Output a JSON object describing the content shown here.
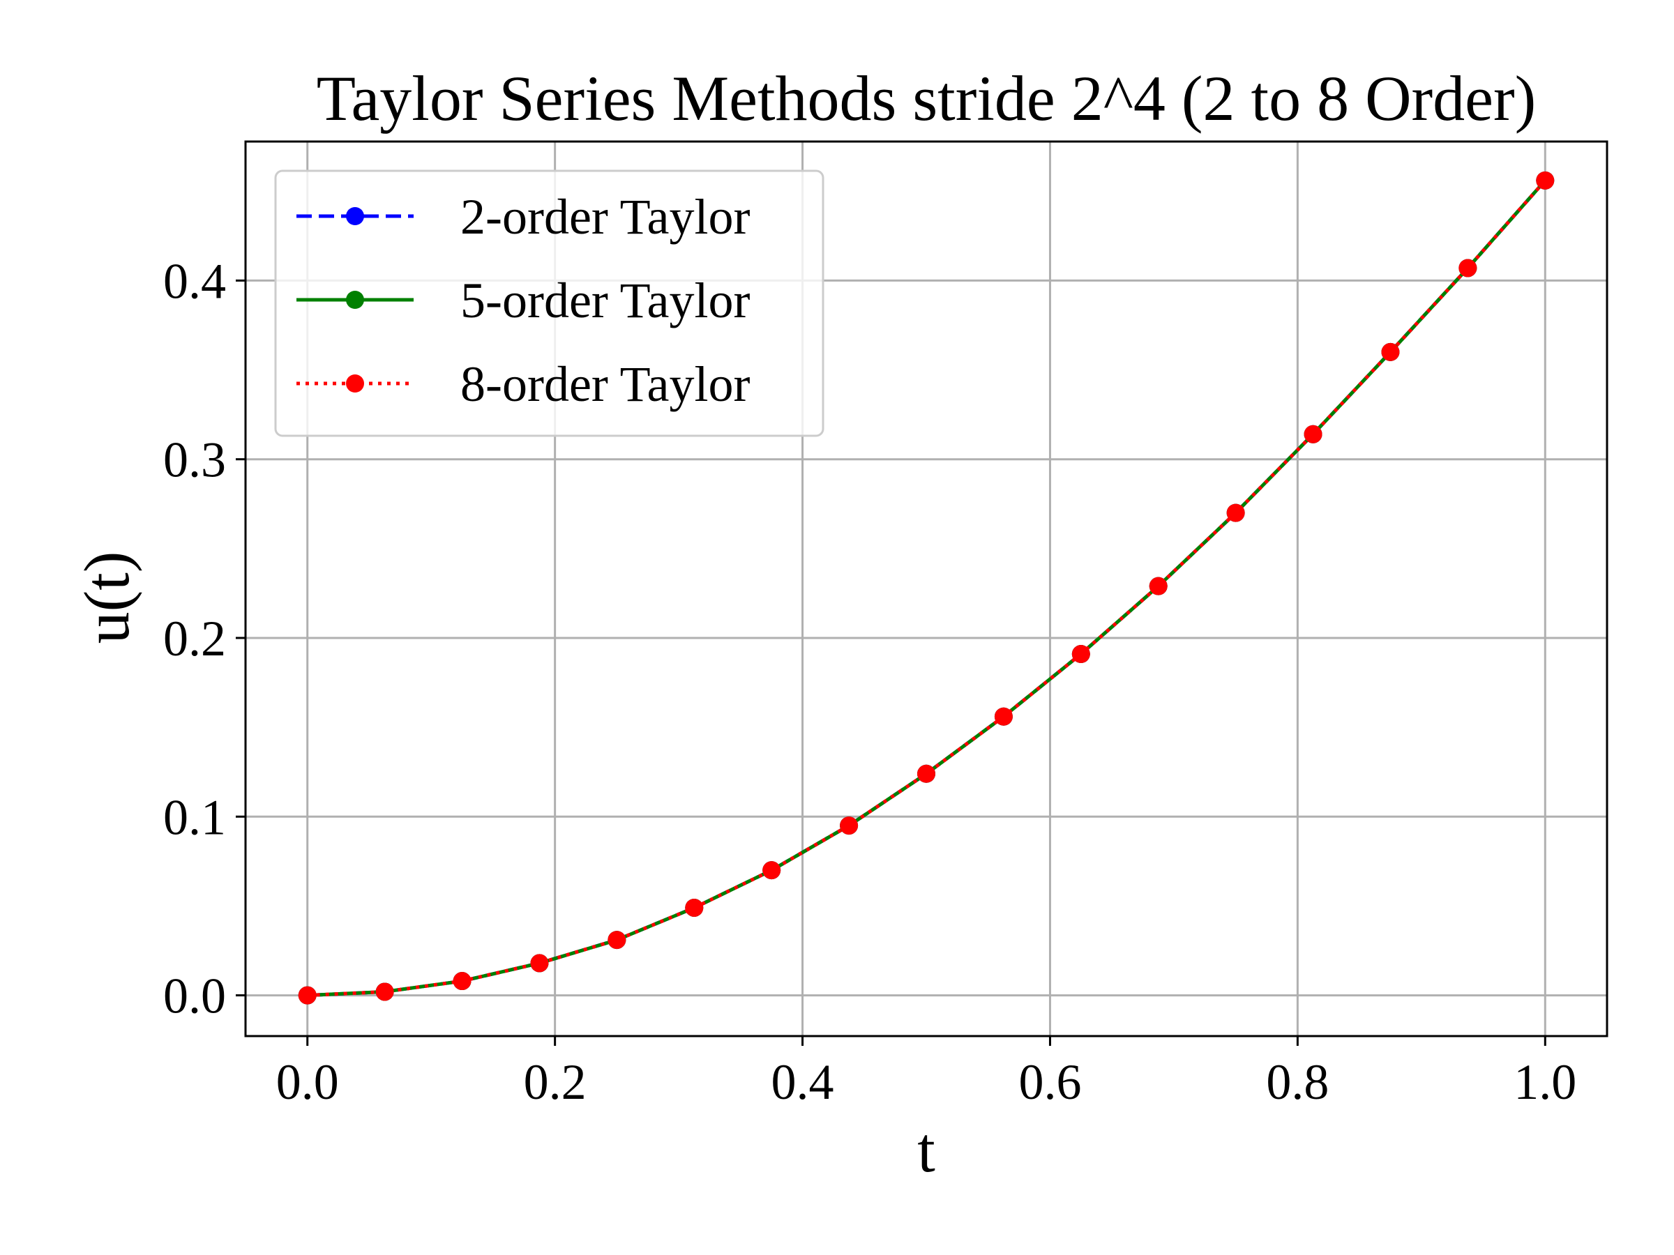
{
  "chart_data": {
    "type": "line",
    "title": "Taylor Series Methods stride 2^4 (2 to 8 Order)",
    "xlabel": "t",
    "ylabel": "u(t)",
    "xlim": [
      -0.05,
      1.05
    ],
    "ylim": [
      -0.0228,
      0.4778
    ],
    "grid": true,
    "legend_position": "upper-left",
    "xticks": [
      0.0,
      0.2,
      0.4,
      0.6,
      0.8,
      1.0
    ],
    "xtick_labels": [
      "0.0",
      "0.2",
      "0.4",
      "0.6",
      "0.8",
      "1.0"
    ],
    "yticks": [
      0.0,
      0.1,
      0.2,
      0.3,
      0.4
    ],
    "ytick_labels": [
      "0.0",
      "0.1",
      "0.2",
      "0.3",
      "0.4"
    ],
    "x": [
      0.0,
      0.0625,
      0.125,
      0.1875,
      0.25,
      0.3125,
      0.375,
      0.4375,
      0.5,
      0.5625,
      0.625,
      0.6875,
      0.75,
      0.8125,
      0.875,
      0.9375,
      1.0
    ],
    "series": [
      {
        "name": "2-order Taylor",
        "color": "#0000ff",
        "line_style": "dashed",
        "marker": "circle",
        "values": [
          0.0,
          0.002,
          0.008,
          0.018,
          0.031,
          0.049,
          0.07,
          0.095,
          0.124,
          0.156,
          0.191,
          0.229,
          0.27,
          0.314,
          0.36,
          0.407,
          0.456
        ]
      },
      {
        "name": "5-order Taylor",
        "color": "#008000",
        "line_style": "solid",
        "marker": "circle",
        "values": [
          0.0,
          0.002,
          0.008,
          0.018,
          0.031,
          0.049,
          0.07,
          0.095,
          0.124,
          0.156,
          0.191,
          0.229,
          0.27,
          0.314,
          0.36,
          0.407,
          0.456
        ]
      },
      {
        "name": "8-order Taylor",
        "color": "#ff0000",
        "line_style": "dotted",
        "marker": "circle",
        "values": [
          0.0,
          0.002,
          0.008,
          0.018,
          0.031,
          0.049,
          0.07,
          0.095,
          0.124,
          0.156,
          0.191,
          0.229,
          0.27,
          0.314,
          0.36,
          0.407,
          0.456
        ]
      }
    ]
  }
}
